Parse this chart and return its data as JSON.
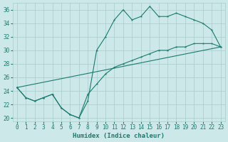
{
  "xlabel": "Humidex (Indice chaleur)",
  "bg_color": "#cce8e8",
  "grid_color": "#aacccc",
  "line_color": "#1a7a6e",
  "xlim": [
    -0.5,
    23.5
  ],
  "ylim": [
    19.5,
    37
  ],
  "yticks": [
    20,
    22,
    24,
    26,
    28,
    30,
    32,
    34,
    36
  ],
  "xticks": [
    0,
    1,
    2,
    3,
    4,
    5,
    6,
    7,
    8,
    9,
    10,
    11,
    12,
    13,
    14,
    15,
    16,
    17,
    18,
    19,
    20,
    21,
    22,
    23
  ],
  "line1_x": [
    0,
    1,
    2,
    3,
    4,
    5,
    6,
    7,
    8,
    9,
    10,
    11,
    12,
    13,
    14,
    15,
    16,
    17,
    18,
    19,
    20,
    21,
    22,
    23
  ],
  "line1_y": [
    24.5,
    23.0,
    22.5,
    23.0,
    23.5,
    21.5,
    20.5,
    20.0,
    22.5,
    30.0,
    32.0,
    34.5,
    36.0,
    34.5,
    35.0,
    36.5,
    35.0,
    35.0,
    35.5,
    35.0,
    34.5,
    34.0,
    33.0,
    30.5
  ],
  "line2_x": [
    0,
    1,
    2,
    3,
    4,
    5,
    6,
    7,
    8,
    9,
    10,
    11,
    12,
    13,
    14,
    15,
    16,
    17,
    18,
    19,
    20,
    21,
    22,
    23
  ],
  "line2_y": [
    24.5,
    23.0,
    22.5,
    23.0,
    23.5,
    21.5,
    20.5,
    20.0,
    23.5,
    25.0,
    26.5,
    27.5,
    28.0,
    28.5,
    29.0,
    29.5,
    30.0,
    30.0,
    30.5,
    30.5,
    31.0,
    31.0,
    31.0,
    30.5
  ],
  "line3_x": [
    0,
    23
  ],
  "line3_y": [
    24.5,
    30.5
  ]
}
